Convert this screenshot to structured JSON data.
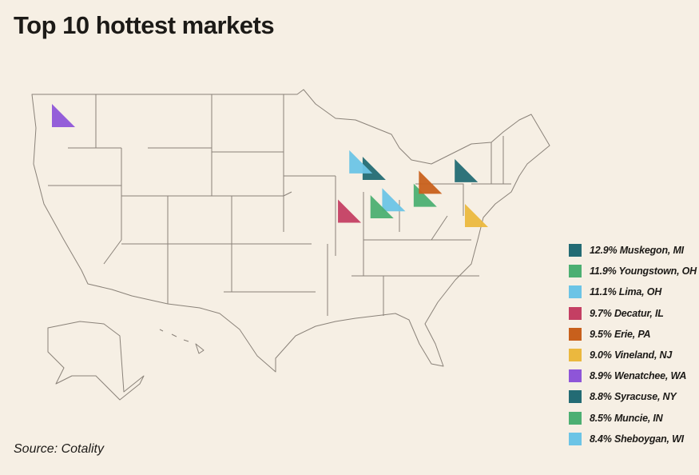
{
  "title": "Top 10 hottest markets",
  "source": "Source: Cotality",
  "colors": {
    "background": "#f6efe4",
    "state_border": "#8a8279"
  },
  "markets": [
    {
      "label": "12.9% Muskegon, MI",
      "value": 12.9,
      "city": "Muskegon, MI",
      "color": "#236b74",
      "lon": -86.25,
      "lat": 43.23
    },
    {
      "label": "11.9% Youngstown, OH",
      "value": 11.9,
      "city": "Youngstown, OH",
      "color": "#4caf72",
      "lon": -80.65,
      "lat": 41.1
    },
    {
      "label": "11.1% Lima, OH",
      "value": 11.1,
      "city": "Lima, OH",
      "color": "#6cc4e6",
      "lon": -84.1,
      "lat": 40.74
    },
    {
      "label": "9.7% Decatur, IL",
      "value": 9.7,
      "city": "Decatur, IL",
      "color": "#c43f63",
      "lon": -88.95,
      "lat": 39.84
    },
    {
      "label": "9.5% Erie, PA",
      "value": 9.5,
      "city": "Erie, PA",
      "color": "#c8601c",
      "lon": -80.08,
      "lat": 42.13
    },
    {
      "label": "9.0% Vineland, NJ",
      "value": 9.0,
      "city": "Vineland, NJ",
      "color": "#ebb83e",
      "lon": -75.03,
      "lat": 39.49
    },
    {
      "label": "8.9% Wenatchee, WA",
      "value": 8.9,
      "city": "Wenatchee, WA",
      "color": "#8e55d8",
      "lon": -120.31,
      "lat": 47.42
    },
    {
      "label": "8.8% Syracuse, NY",
      "value": 8.8,
      "city": "Syracuse, NY",
      "color": "#236b74",
      "lon": -76.15,
      "lat": 43.05
    },
    {
      "label": "8.5% Muncie, IN",
      "value": 8.5,
      "city": "Muncie, IN",
      "color": "#4caf72",
      "lon": -85.39,
      "lat": 40.19
    },
    {
      "label": "8.4% Sheboygan, WI",
      "value": 8.4,
      "city": "Sheboygan, WI",
      "color": "#6cc4e6",
      "lon": -87.71,
      "lat": 43.75
    }
  ]
}
